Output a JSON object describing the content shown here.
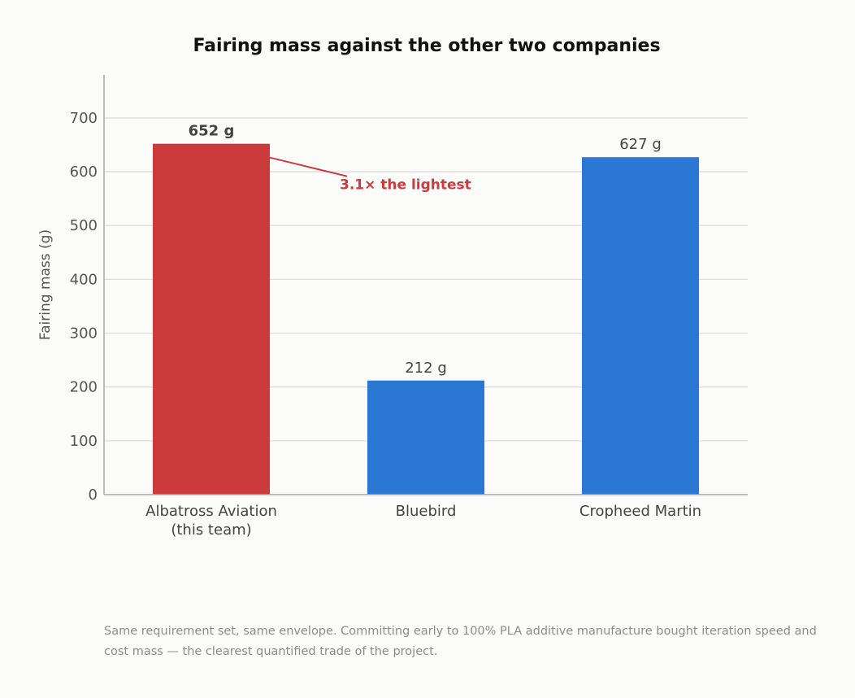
{
  "colors": {
    "highlight": "#cc3b3b",
    "bar": "#2b78d4",
    "grid": "#dddddd",
    "axis": "#aaaaaa",
    "annotation": "#cc3b3b"
  },
  "chart_data": {
    "type": "bar",
    "title": "Fairing mass against the other two companies",
    "ylabel": "Fairing mass  (g)",
    "xlabel": "",
    "ylim": [
      0,
      780
    ],
    "yticks": [
      0,
      100,
      200,
      300,
      400,
      500,
      600,
      700
    ],
    "grid": true,
    "categories": [
      [
        "Albatross Aviation",
        "(this team)"
      ],
      [
        "Bluebird"
      ],
      [
        "Cropheed Martin"
      ]
    ],
    "values": [
      652,
      212,
      627
    ],
    "value_labels": [
      "652 g",
      "212 g",
      "627 g"
    ],
    "highlight_index": 0,
    "annotation": {
      "text": "3.1× the lightest",
      "target_index": 0
    }
  },
  "footnote": "Same requirement set, same envelope. Committing early to 100% PLA additive manufacture bought iteration speed and cost mass — the clearest quantified trade of the project."
}
